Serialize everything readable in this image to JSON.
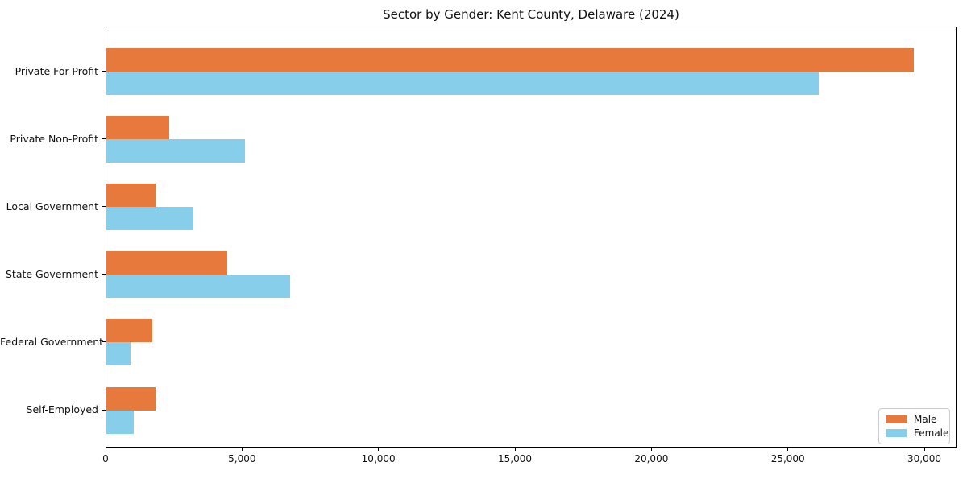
{
  "figure": {
    "title": "Sector by Gender: Kent County, Delaware (2024)"
  },
  "chart_data": {
    "type": "bar",
    "orientation": "horizontal",
    "title": "Sector by Gender: Kent County, Delaware (2024)",
    "categories": [
      "Private For-Profit",
      "Private Non-Profit",
      "Local Government",
      "State Government",
      "Federal Government",
      "Self-Employed"
    ],
    "series": [
      {
        "name": "Male",
        "color": "#E8793C",
        "values": [
          29650,
          2300,
          1800,
          4450,
          1700,
          1800
        ]
      },
      {
        "name": "Female",
        "color": "#87CEEB",
        "values": [
          26150,
          5100,
          3200,
          6750,
          900,
          1000
        ]
      }
    ],
    "xlabel": "",
    "ylabel": "",
    "xlim": [
      0,
      31180
    ],
    "x_ticks": [
      {
        "value": 0,
        "label": "0"
      },
      {
        "value": 5000,
        "label": "5,000"
      },
      {
        "value": 10000,
        "label": "10,000"
      },
      {
        "value": 15000,
        "label": "15,000"
      },
      {
        "value": 20000,
        "label": "20,000"
      },
      {
        "value": 25000,
        "label": "25,000"
      },
      {
        "value": 30000,
        "label": "30,000"
      }
    ],
    "grid": false,
    "legend_position": "lower right"
  },
  "legend": {
    "items": [
      {
        "label": "Male",
        "color": "#E8793C"
      },
      {
        "label": "Female",
        "color": "#87CEEB"
      }
    ]
  }
}
